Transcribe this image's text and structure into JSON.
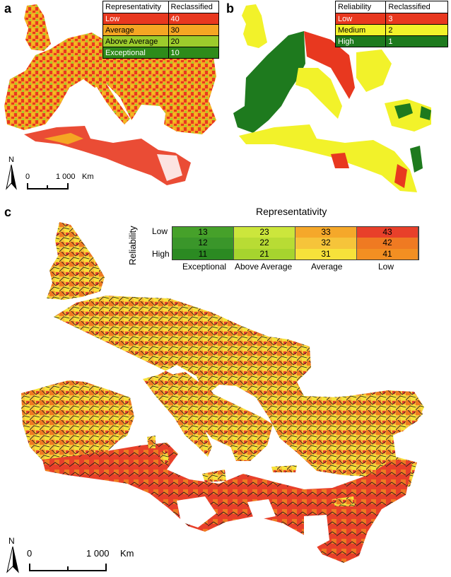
{
  "panels": {
    "a": {
      "label": "a",
      "legend": {
        "headers": [
          "Representativity",
          "Reclassified"
        ],
        "rows": [
          {
            "name": "Low",
            "value": "40",
            "color": "#e8381f"
          },
          {
            "name": "Average",
            "value": "30",
            "color": "#f5a623"
          },
          {
            "name": "Above Average",
            "value": "20",
            "color": "#9ccc2c"
          },
          {
            "name": "Exceptional",
            "value": "10",
            "color": "#2e8b1a"
          }
        ]
      },
      "scale": {
        "zero": "0",
        "distance": "1 000",
        "unit": "Km",
        "north": "N"
      }
    },
    "b": {
      "label": "b",
      "legend": {
        "headers": [
          "Reliability",
          "Reclassified"
        ],
        "rows": [
          {
            "name": "Low",
            "value": "3",
            "color": "#e8381f"
          },
          {
            "name": "Medium",
            "value": "2",
            "color": "#f2f22a"
          },
          {
            "name": "High",
            "value": "1",
            "color": "#1e7a1e"
          }
        ]
      }
    },
    "c": {
      "label": "c",
      "matrix": {
        "title": "Representativity",
        "y_title": "Reliability",
        "row_labels": [
          "Low",
          "",
          "High"
        ],
        "col_labels": [
          "Exceptional",
          "Above Average",
          "Average",
          "Low"
        ],
        "cells": [
          [
            {
              "v": "13",
              "c": "#46a12a"
            },
            {
              "v": "23",
              "c": "#cce63c"
            },
            {
              "v": "33",
              "c": "#f5a82a"
            },
            {
              "v": "43",
              "c": "#e8402a"
            }
          ],
          [
            {
              "v": "12",
              "c": "#3a962a"
            },
            {
              "v": "22",
              "c": "#b8dc34"
            },
            {
              "v": "32",
              "c": "#f6c43a"
            },
            {
              "v": "42",
              "c": "#ef7a22"
            }
          ],
          [
            {
              "v": "11",
              "c": "#2b8a22"
            },
            {
              "v": "21",
              "c": "#a6d42e"
            },
            {
              "v": "31",
              "c": "#f7e23a"
            },
            {
              "v": "41",
              "c": "#f28f22"
            }
          ]
        ]
      },
      "scale": {
        "zero": "0",
        "distance": "1 000",
        "unit": "Km",
        "north": "N"
      }
    }
  }
}
